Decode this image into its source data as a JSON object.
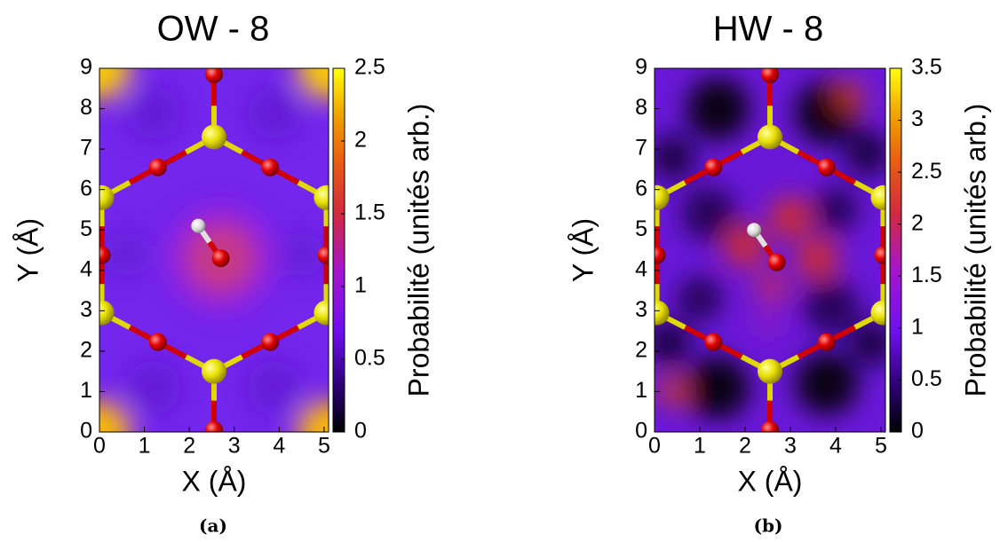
{
  "chart_data": [
    {
      "type": "heatmap",
      "title": "OW - 8",
      "xlabel": "X (Å)",
      "ylabel": "Y (Å)",
      "xlim": [
        0,
        5.1
      ],
      "ylim": [
        0,
        9
      ],
      "xticks": [
        0,
        1,
        2,
        3,
        4,
        5
      ],
      "yticks": [
        0,
        1,
        2,
        3,
        4,
        5,
        6,
        7,
        8,
        9
      ],
      "colorbar_label": "Probabilité (unités arb.)",
      "clim": [
        0,
        2.5
      ],
      "cticks": [
        0,
        0.5,
        1,
        1.5,
        2,
        2.5
      ],
      "caption": "(a)"
    },
    {
      "type": "heatmap",
      "title": "HW - 8",
      "xlabel": "X (Å)",
      "ylabel": "Y (Å)",
      "xlim": [
        0,
        5.1
      ],
      "ylim": [
        0,
        9
      ],
      "xticks": [
        0,
        1,
        2,
        3,
        4,
        5
      ],
      "yticks": [
        0,
        1,
        2,
        3,
        4,
        5,
        6,
        7,
        8,
        9
      ],
      "colorbar_label": "Probabilité (unités arb.)",
      "clim": [
        0,
        3.5
      ],
      "cticks": [
        0,
        0.5,
        1,
        1.5,
        2,
        2.5,
        3,
        3.5
      ],
      "caption": "(b)"
    }
  ]
}
